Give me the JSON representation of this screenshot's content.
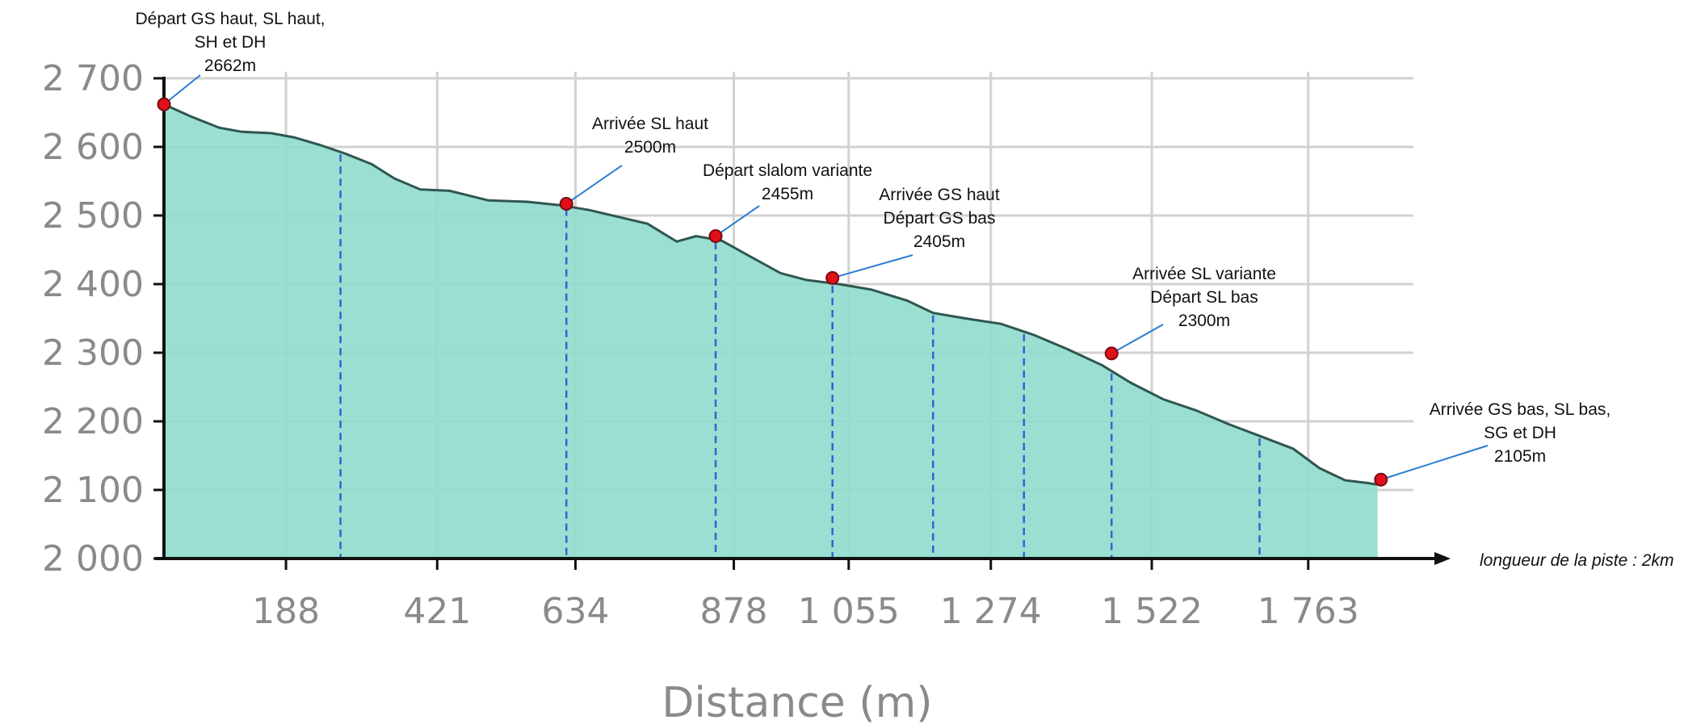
{
  "chart_data": {
    "type": "area",
    "xlabel": "Distance (m)",
    "ylabel": "",
    "ylim": [
      2000,
      2700
    ],
    "yticks": [
      "2 000",
      "2 100",
      "2 200",
      "2 300",
      "2 400",
      "2 500",
      "2 600",
      "2 700"
    ],
    "ytick_values": [
      2000,
      2100,
      2200,
      2300,
      2400,
      2500,
      2600,
      2700
    ],
    "xticks": [
      "188",
      "421",
      "634",
      "878",
      "1 055",
      "1 274",
      "1 522",
      "1 763"
    ],
    "xtick_values": [
      188,
      421,
      634,
      878,
      1055,
      1274,
      1522,
      1763
    ],
    "xlim": [
      0,
      1950
    ],
    "grid": true,
    "colors": {
      "fill": "#8fdccc",
      "line": "#2f5650",
      "axis": "#111111",
      "grid": "#d2d2d2",
      "marker": "#e0101a",
      "dashed": "#3a5fd6",
      "callout": "#2a7dd1"
    },
    "series": [
      {
        "values": [
          {
            "x": 0,
            "y": 2662
          },
          {
            "x": 40,
            "y": 2645
          },
          {
            "x": 85,
            "y": 2628
          },
          {
            "x": 120,
            "y": 2622
          },
          {
            "x": 165,
            "y": 2620
          },
          {
            "x": 200,
            "y": 2614
          },
          {
            "x": 240,
            "y": 2603
          },
          {
            "x": 280,
            "y": 2590
          },
          {
            "x": 320,
            "y": 2575
          },
          {
            "x": 355,
            "y": 2554
          },
          {
            "x": 395,
            "y": 2538
          },
          {
            "x": 440,
            "y": 2536
          },
          {
            "x": 500,
            "y": 2522
          },
          {
            "x": 560,
            "y": 2520
          },
          {
            "x": 610,
            "y": 2515
          },
          {
            "x": 655,
            "y": 2508
          },
          {
            "x": 700,
            "y": 2498
          },
          {
            "x": 745,
            "y": 2488
          },
          {
            "x": 790,
            "y": 2462
          },
          {
            "x": 820,
            "y": 2470
          },
          {
            "x": 860,
            "y": 2463
          },
          {
            "x": 900,
            "y": 2442
          },
          {
            "x": 950,
            "y": 2416
          },
          {
            "x": 990,
            "y": 2406
          },
          {
            "x": 1040,
            "y": 2400
          },
          {
            "x": 1090,
            "y": 2392
          },
          {
            "x": 1145,
            "y": 2376
          },
          {
            "x": 1185,
            "y": 2358
          },
          {
            "x": 1235,
            "y": 2350
          },
          {
            "x": 1290,
            "y": 2342
          },
          {
            "x": 1340,
            "y": 2326
          },
          {
            "x": 1390,
            "y": 2306
          },
          {
            "x": 1445,
            "y": 2282
          },
          {
            "x": 1490,
            "y": 2256
          },
          {
            "x": 1540,
            "y": 2232
          },
          {
            "x": 1590,
            "y": 2216
          },
          {
            "x": 1640,
            "y": 2196
          },
          {
            "x": 1690,
            "y": 2178
          },
          {
            "x": 1740,
            "y": 2160
          },
          {
            "x": 1780,
            "y": 2132
          },
          {
            "x": 1820,
            "y": 2114
          },
          {
            "x": 1855,
            "y": 2110
          },
          {
            "x": 1868,
            "y": 2108
          },
          {
            "x": 1870,
            "y": 2110
          }
        ]
      }
    ],
    "dashed_markers_x": [
      272,
      620,
      850,
      1030,
      1185,
      1325,
      1460,
      1688
    ],
    "annotations": [
      {
        "x": 0,
        "y": 2662,
        "lines": [
          "Départ GS haut, SL haut,",
          "SH et DH",
          "2662m"
        ],
        "anchor": "above-left"
      },
      {
        "x": 620,
        "y": 2517,
        "lines": [
          "Arrivée SL haut",
          "2500m"
        ],
        "anchor": "above-right"
      },
      {
        "x": 850,
        "y": 2470,
        "lines": [
          "Départ slalom variante",
          "2455m"
        ],
        "anchor": "above-right"
      },
      {
        "x": 1030,
        "y": 2409,
        "lines": [
          "Arrivée GS haut",
          "Départ GS bas",
          "2405m"
        ],
        "anchor": "above-right"
      },
      {
        "x": 1460,
        "y": 2299,
        "lines": [
          "Arrivée SL variante",
          "Départ SL bas",
          "2300m"
        ],
        "anchor": "above-right"
      },
      {
        "x": 1875,
        "y": 2115,
        "lines": [
          "Arrivée GS bas, SL bas,",
          "SG et DH",
          "2105m"
        ],
        "anchor": "above-right"
      }
    ],
    "length_label": "longueur de la piste : 2km"
  }
}
